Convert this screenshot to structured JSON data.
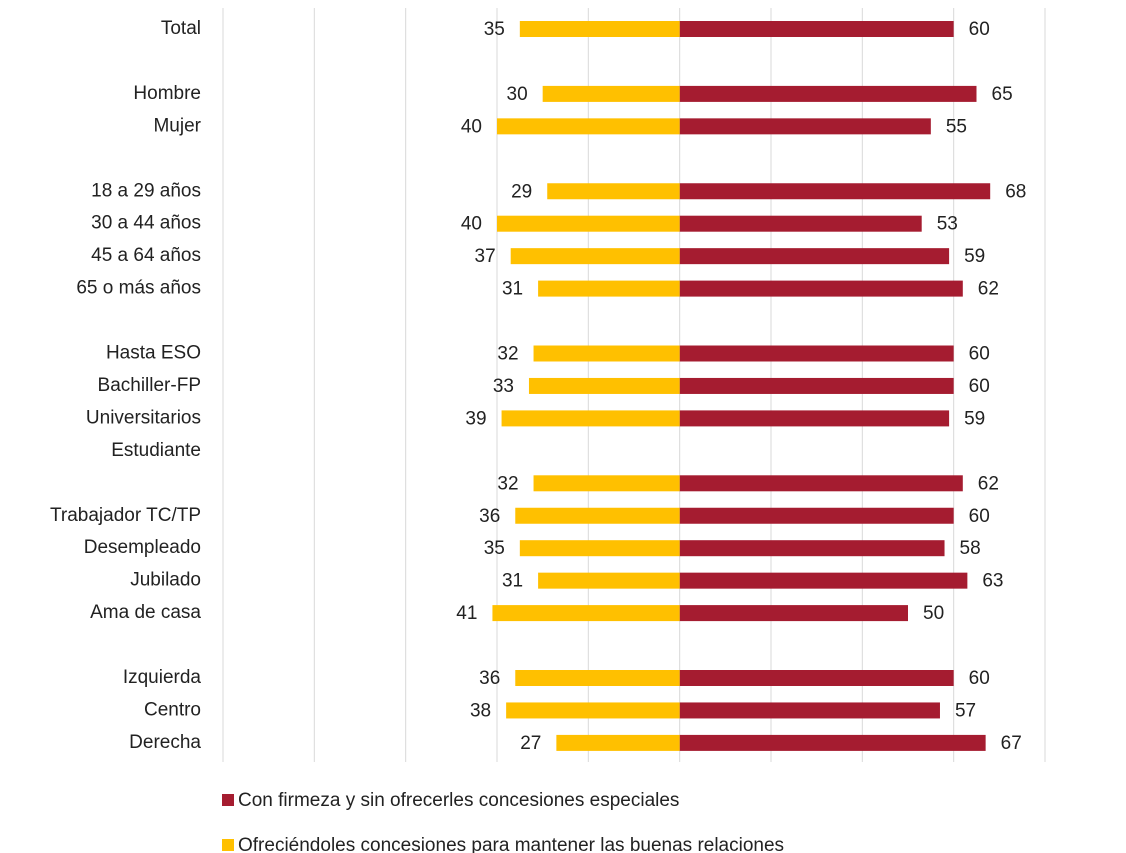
{
  "chart_data": {
    "type": "diverging_bar",
    "categories": [
      "Total",
      null,
      "Hombre",
      "Mujer",
      null,
      "18 a 29 años",
      "30 a 44 años",
      "45 a 64 años",
      "65 o más años",
      null,
      "Hasta ESO",
      "Bachiller-FP",
      "Universitarios",
      "Estudiante",
      null,
      "Trabajador TC/TP",
      "Desempleado",
      "Jubilado",
      "Ama de casa",
      null,
      "Izquierda",
      "Centro",
      "Derecha"
    ],
    "series": [
      {
        "name": "Con firmeza y sin ofrecerles concesiones especiales",
        "color": "#a51c30",
        "values": [
          60,
          null,
          65,
          55,
          null,
          68,
          53,
          59,
          62,
          null,
          60,
          60,
          59,
          null,
          62,
          60,
          58,
          63,
          50,
          null,
          60,
          57,
          67
        ]
      },
      {
        "name": "Ofreciéndoles concesiones para mantener las buenas relaciones",
        "color": "#ffc000",
        "values": [
          35,
          null,
          30,
          40,
          null,
          29,
          40,
          37,
          31,
          null,
          32,
          33,
          39,
          null,
          32,
          36,
          35,
          31,
          41,
          null,
          36,
          38,
          27
        ]
      }
    ],
    "xlim": [
      -100,
      80
    ],
    "xticks": [
      -100,
      -80,
      -60,
      -40,
      -20,
      0,
      20,
      40,
      60,
      80
    ],
    "grid": true
  }
}
